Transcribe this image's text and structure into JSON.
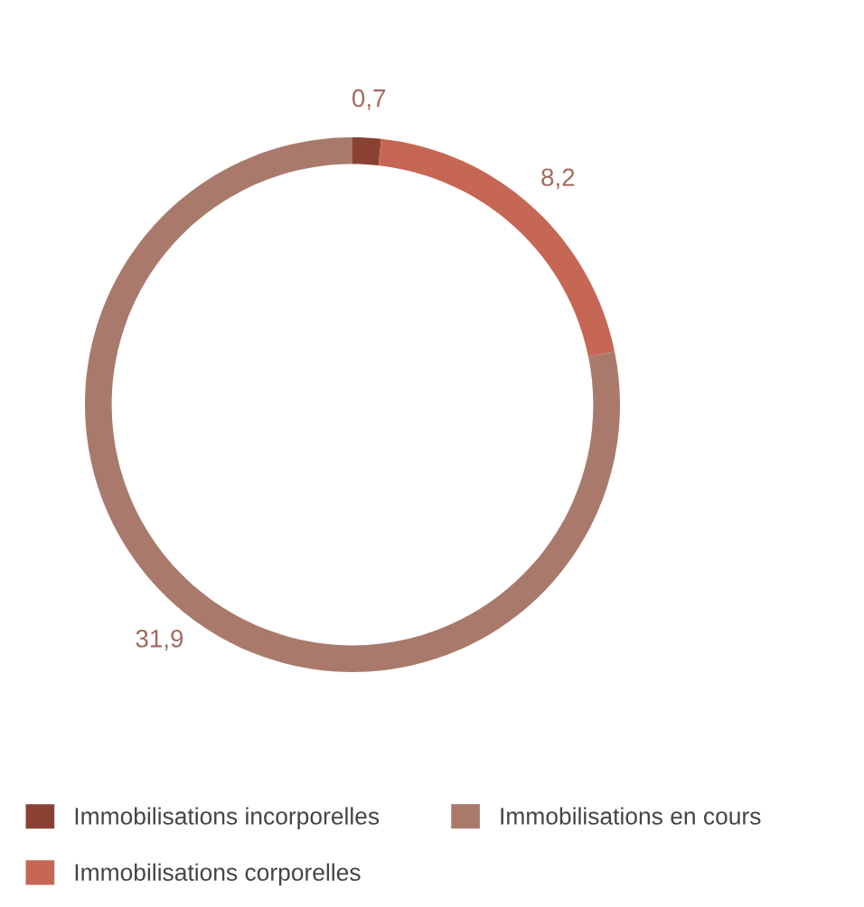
{
  "chart_data": {
    "type": "donut",
    "categories": [
      "Immobilisations incorporelles",
      "Immobilisations corporelles",
      "Immobilisations en cours"
    ],
    "values": [
      0.7,
      8.2,
      31.9
    ],
    "colors": [
      "#8a4134",
      "#c66654",
      "#a97a6c"
    ],
    "value_labels": [
      "0,7",
      "8,2",
      "31,9"
    ],
    "legend": "bottom"
  }
}
